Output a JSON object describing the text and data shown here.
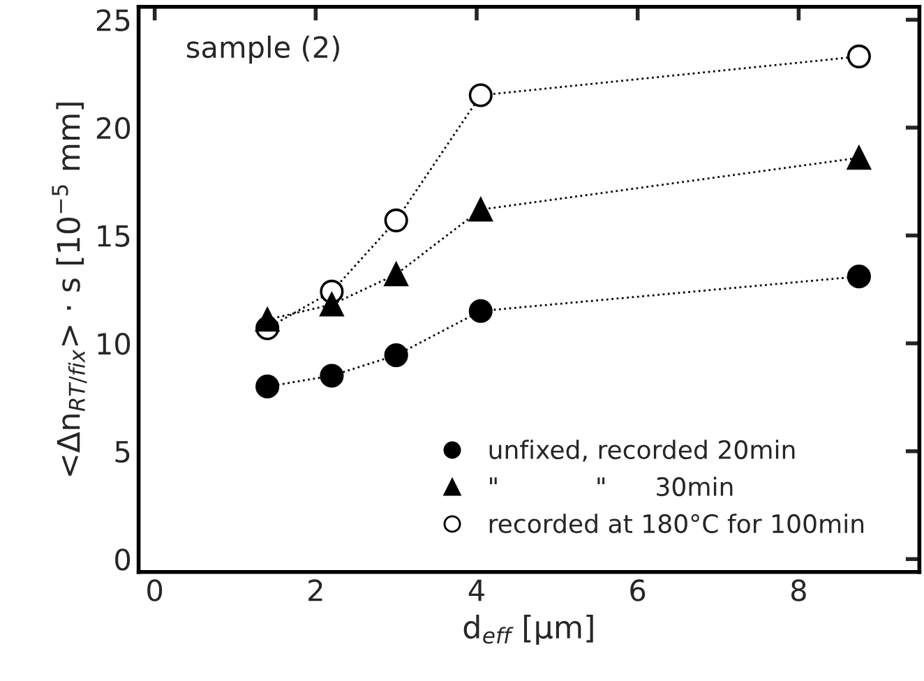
{
  "chart_data": {
    "type": "line",
    "title": "sample (2)",
    "xlabel": "d$_{eff}$ [μm]",
    "ylabel": "<Δn$_{RT/fix}$> · s [10$^{−5}$ mm]",
    "xlim": [
      -0.2,
      9.5
    ],
    "xticks": [
      0,
      2,
      4,
      6,
      8
    ],
    "ylim": [
      -0.6,
      25.6
    ],
    "yticks": [
      0,
      5,
      10,
      15,
      20,
      25
    ],
    "grid": false,
    "legend": "bottom right",
    "line_style": "dotted",
    "series": [
      {
        "name": "unfixed, recorded 20min",
        "color": "#000000",
        "marker": "circle",
        "x": [
          1.4,
          2.2,
          3.0,
          4.05,
          8.75
        ],
        "values": [
          8.0,
          8.5,
          9.45,
          11.5,
          13.1
        ]
      },
      {
        "name": "\"            \"      30min",
        "color": "#000000",
        "marker": "triangle",
        "x": [
          1.4,
          2.2,
          3.0,
          4.05,
          8.75
        ],
        "values": [
          11.1,
          11.8,
          13.2,
          16.2,
          18.6
        ]
      },
      {
        "name": "recorded at 180°C for 100min",
        "color": "#ffffff",
        "marker": "circle",
        "x": [
          1.4,
          2.2,
          3.0,
          4.05,
          8.75
        ],
        "values": [
          10.7,
          12.4,
          15.7,
          21.5,
          23.3
        ]
      }
    ]
  }
}
